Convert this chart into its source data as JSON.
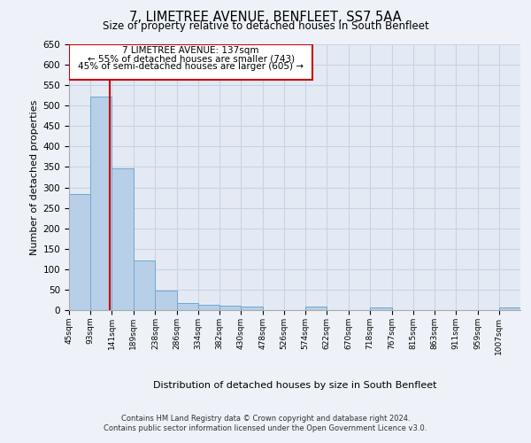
{
  "title": "7, LIMETREE AVENUE, BENFLEET, SS7 5AA",
  "subtitle": "Size of property relative to detached houses in South Benfleet",
  "xlabel": "Distribution of detached houses by size in South Benfleet",
  "ylabel": "Number of detached properties",
  "bin_labels": [
    "45sqm",
    "93sqm",
    "141sqm",
    "189sqm",
    "238sqm",
    "286sqm",
    "334sqm",
    "382sqm",
    "430sqm",
    "478sqm",
    "526sqm",
    "574sqm",
    "622sqm",
    "670sqm",
    "718sqm",
    "767sqm",
    "815sqm",
    "863sqm",
    "911sqm",
    "959sqm",
    "1007sqm"
  ],
  "bin_edges": [
    45,
    93,
    141,
    189,
    238,
    286,
    334,
    382,
    430,
    478,
    526,
    574,
    622,
    670,
    718,
    767,
    815,
    863,
    911,
    959,
    1007,
    1055
  ],
  "bar_heights": [
    283,
    523,
    347,
    122,
    48,
    17,
    12,
    10,
    8,
    0,
    0,
    8,
    0,
    0,
    7,
    0,
    0,
    0,
    0,
    0,
    7
  ],
  "bar_color": "#b8cfe8",
  "bar_edge_color": "#6fa8d0",
  "grid_color": "#c8d4e4",
  "property_size": 137,
  "property_label": "7 LIMETREE AVENUE: 137sqm",
  "annotation_line1": "← 55% of detached houses are smaller (743)",
  "annotation_line2": "45% of semi-detached houses are larger (605) →",
  "redline_color": "#cc0000",
  "box_color": "#cc0000",
  "ylim": [
    0,
    650
  ],
  "yticks": [
    0,
    50,
    100,
    150,
    200,
    250,
    300,
    350,
    400,
    450,
    500,
    550,
    600,
    650
  ],
  "footer_line1": "Contains HM Land Registry data © Crown copyright and database right 2024.",
  "footer_line2": "Contains public sector information licensed under the Open Government Licence v3.0.",
  "background_color": "#eef2f8",
  "plot_background": "#e4eaf4"
}
